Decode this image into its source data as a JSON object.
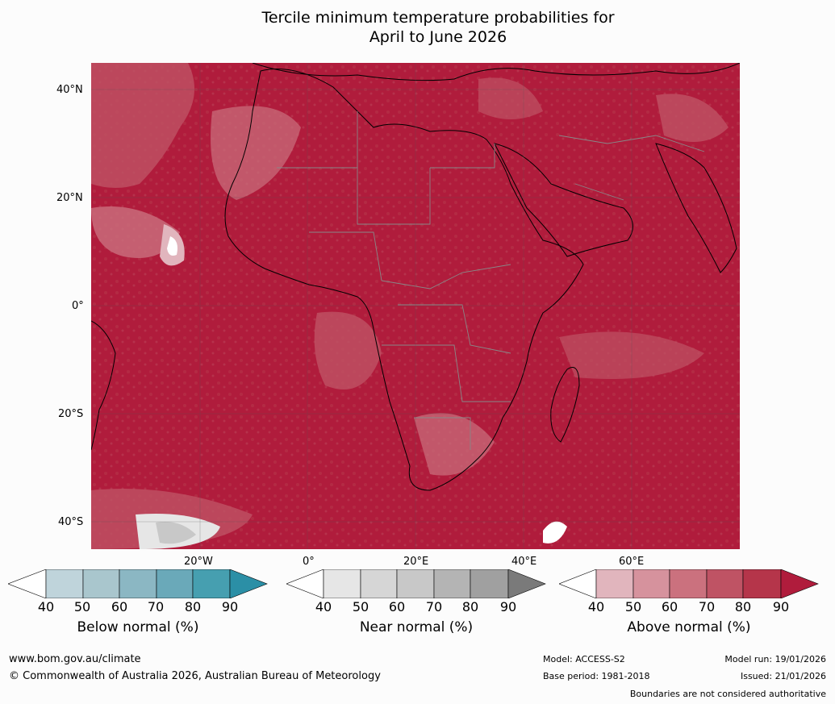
{
  "title": {
    "line1": "Tercile minimum temperature probabilities for",
    "line2": "April to June 2026"
  },
  "map": {
    "lat_labels": [
      "40°N",
      "20°N",
      "0°",
      "20°S",
      "40°S"
    ],
    "lon_labels": [
      "20°W",
      "0°",
      "20°E",
      "40°E",
      "60°E"
    ],
    "region": "Africa and Middle East"
  },
  "colorbars": {
    "below": {
      "label": "Below normal (%)",
      "ticks": [
        "40",
        "50",
        "60",
        "70",
        "80",
        "90"
      ],
      "colors": [
        "#ffffff",
        "#bfd4db",
        "#a9c6cd",
        "#8bb7c3",
        "#6aa9b9",
        "#469fb0",
        "#2b8fa6"
      ]
    },
    "near": {
      "label": "Near normal (%)",
      "ticks": [
        "40",
        "50",
        "60",
        "70",
        "80",
        "90"
      ],
      "colors": [
        "#ffffff",
        "#e6e6e6",
        "#d6d6d6",
        "#c8c8c8",
        "#b4b4b4",
        "#a0a0a0",
        "#7a7a7a"
      ]
    },
    "above": {
      "label": "Above normal (%)",
      "ticks": [
        "40",
        "50",
        "60",
        "70",
        "80",
        "90"
      ],
      "colors": [
        "#ffffff",
        "#e1b5bd",
        "#d6929d",
        "#cb717e",
        "#bf5364",
        "#b5354a",
        "#b01c3c"
      ]
    }
  },
  "footer": {
    "website": "www.bom.gov.au/climate",
    "copyright": "© Commonwealth of Australia 2026, Australian Bureau of Meteorology",
    "model": "Model: ACCESS-S2",
    "base_period": "Base period: 1981-2018",
    "model_run": "Model run: 19/01/2026",
    "issued": "Issued: 21/01/2026",
    "disclaimer": "Boundaries are not considered authoritative"
  }
}
